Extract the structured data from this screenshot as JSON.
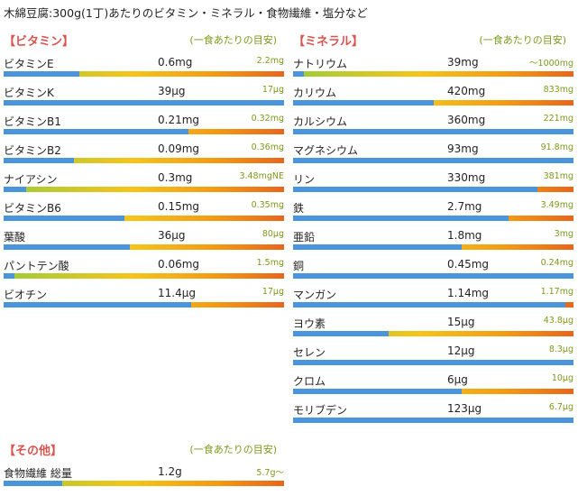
{
  "page_title": "木綿豆腐:300g(1丁)あたりのビタミン・ミネラル・食物繊維・塩分など",
  "vitamins": {
    "title": "【ビタミン】",
    "note": "(一食あたりの目安)",
    "items": [
      {
        "name": "ビタミンE",
        "amount": "0.6mg",
        "target": "2.2mg",
        "ratio": 0.27
      },
      {
        "name": "ビタミンK",
        "amount": "39μg",
        "target": "17μg",
        "ratio": 1.0
      },
      {
        "name": "ビタミンB1",
        "amount": "0.21mg",
        "target": "0.32mg",
        "ratio": 0.66
      },
      {
        "name": "ビタミンB2",
        "amount": "0.09mg",
        "target": "0.36mg",
        "ratio": 0.25
      },
      {
        "name": "ナイアシン",
        "amount": "0.3mg",
        "target": "3.48mgNE",
        "ratio": 0.08
      },
      {
        "name": "ビタミンB6",
        "amount": "0.15mg",
        "target": "0.35mg",
        "ratio": 0.43
      },
      {
        "name": "葉酸",
        "amount": "36μg",
        "target": "80μg",
        "ratio": 0.45
      },
      {
        "name": "パントテン酸",
        "amount": "0.06mg",
        "target": "1.5mg",
        "ratio": 0.04
      },
      {
        "name": "ビオチン",
        "amount": "11.4μg",
        "target": "17μg",
        "ratio": 0.67
      }
    ]
  },
  "minerals": {
    "title": "【ミネラル】",
    "note": "(一食あたりの目安)",
    "items": [
      {
        "name": "ナトリウム",
        "amount": "39mg",
        "target": "〜1000mg",
        "ratio": 0.04
      },
      {
        "name": "カリウム",
        "amount": "420mg",
        "target": "833mg",
        "ratio": 0.5
      },
      {
        "name": "カルシウム",
        "amount": "360mg",
        "target": "221mg",
        "ratio": 1.0
      },
      {
        "name": "マグネシウム",
        "amount": "93mg",
        "target": "91.8mg",
        "ratio": 1.0
      },
      {
        "name": "リン",
        "amount": "330mg",
        "target": "381mg",
        "ratio": 0.87
      },
      {
        "name": "鉄",
        "amount": "2.7mg",
        "target": "3.49mg",
        "ratio": 0.77
      },
      {
        "name": "亜鉛",
        "amount": "1.8mg",
        "target": "3mg",
        "ratio": 0.6
      },
      {
        "name": "銅",
        "amount": "0.45mg",
        "target": "0.24mg",
        "ratio": 1.0
      },
      {
        "name": "マンガン",
        "amount": "1.14mg",
        "target": "1.17mg",
        "ratio": 0.97
      },
      {
        "name": "ヨウ素",
        "amount": "15μg",
        "target": "43.8μg",
        "ratio": 0.34
      },
      {
        "name": "セレン",
        "amount": "12μg",
        "target": "8.3μg",
        "ratio": 1.0
      },
      {
        "name": "クロム",
        "amount": "6μg",
        "target": "10μg",
        "ratio": 0.6
      },
      {
        "name": "モリブデン",
        "amount": "123μg",
        "target": "6.7μg",
        "ratio": 1.0
      }
    ]
  },
  "others": {
    "title": "【その他】",
    "note": "(一食あたりの目安)",
    "items": [
      {
        "name": "食物繊維 総量",
        "amount": "1.2g",
        "target": "5.7g〜",
        "ratio": 0.21
      }
    ]
  },
  "colors": {
    "section_title": "#d9534f",
    "note": "#7a9a1a",
    "bar_fill": "#4a94dc",
    "bar_gradient": [
      "#9ccc3a",
      "#f5c518",
      "#f39c12",
      "#e8661b"
    ]
  }
}
